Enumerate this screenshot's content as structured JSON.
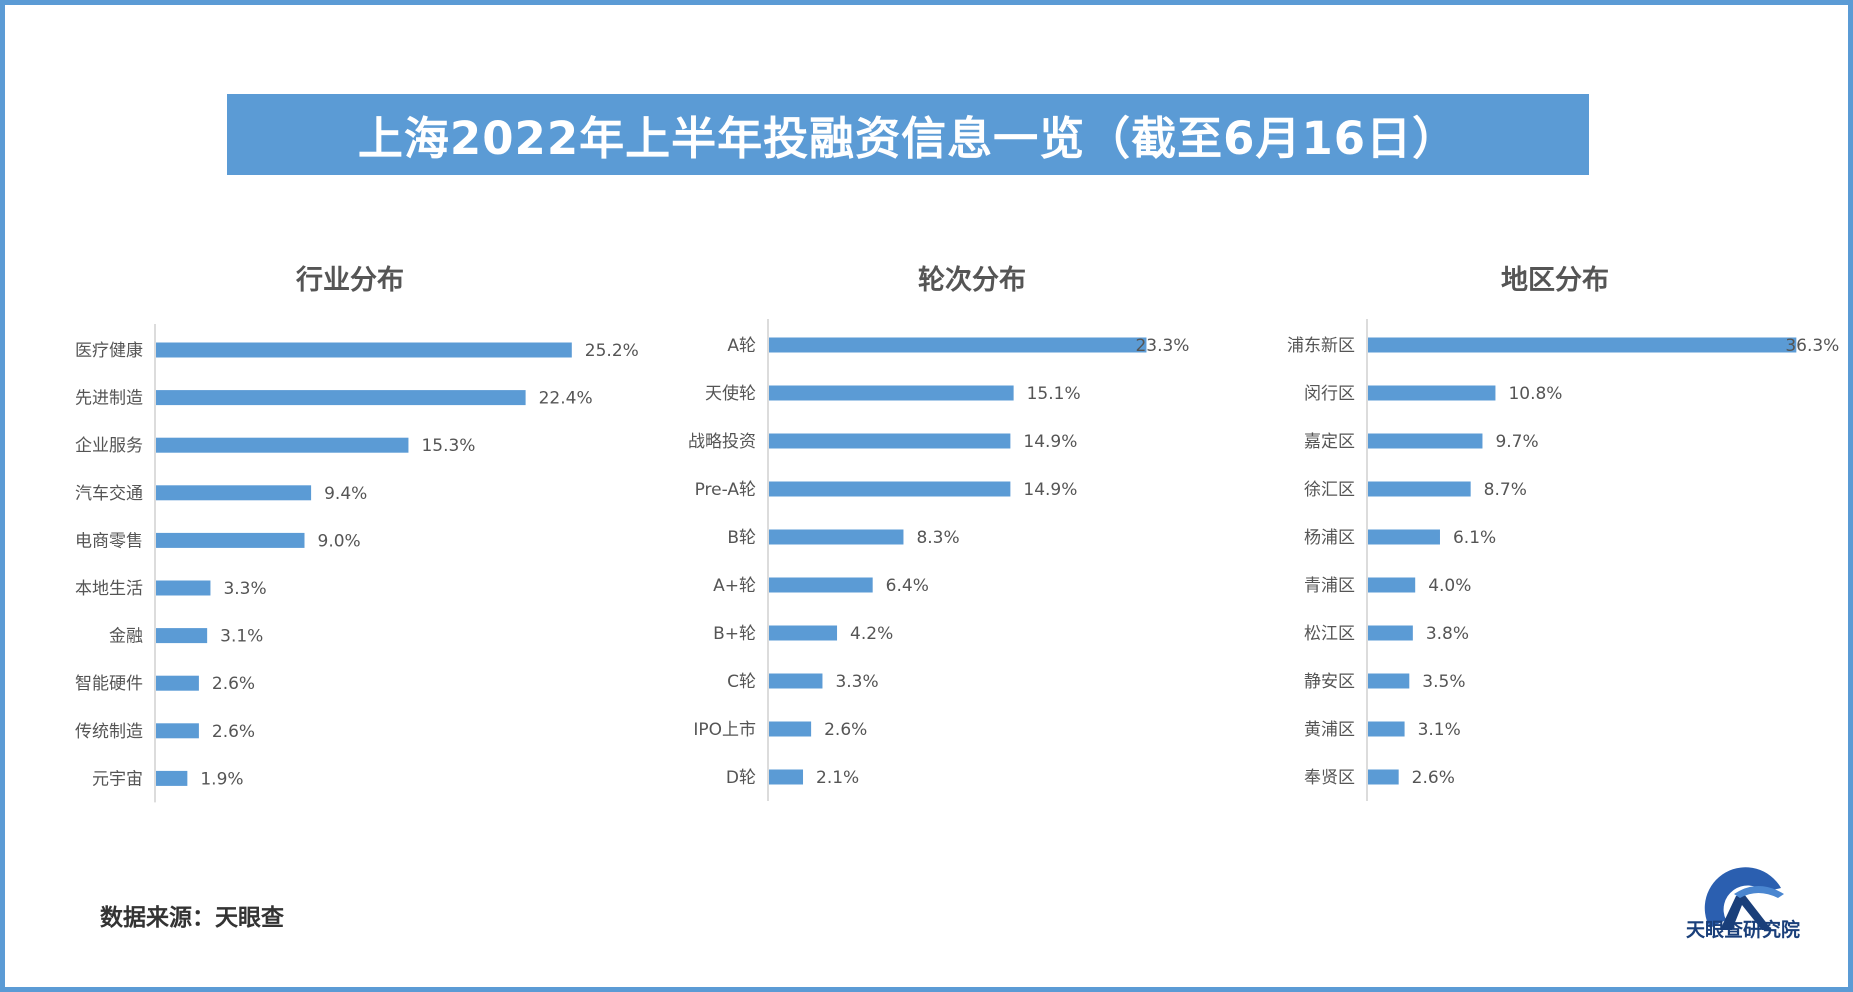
{
  "title": "上海2022年上半年投融资信息一览（截至6月16日）",
  "source_text": "数据来源：天眼查",
  "brand_text": "天眼查研究院",
  "colors": {
    "accent": "#5b9bd5",
    "brand": "#1a3f7a"
  },
  "logo_icon": "tianyancha-logo-icon",
  "chart_data": [
    {
      "type": "bar",
      "orientation": "horizontal",
      "title": "行业分布",
      "categories": [
        "医疗健康",
        "先进制造",
        "企业服务",
        "汽车交通",
        "电商零售",
        "本地生活",
        "金融",
        "智能硬件",
        "传统制造",
        "元宇宙"
      ],
      "values": [
        25.2,
        22.4,
        15.3,
        9.4,
        9.0,
        3.3,
        3.1,
        2.6,
        2.6,
        1.9
      ],
      "labels": [
        "25.2%",
        "22.4%",
        "15.3%",
        "9.4%",
        "9.0%",
        "3.3%",
        "3.1%",
        "2.6%",
        "2.6%",
        "1.9%"
      ],
      "unit": "%",
      "grid": false
    },
    {
      "type": "bar",
      "orientation": "horizontal",
      "title": "轮次分布",
      "categories": [
        "A轮",
        "天使轮",
        "战略投资",
        "Pre-A轮",
        "B轮",
        "A+轮",
        "B+轮",
        "C轮",
        "IPO上市",
        "D轮"
      ],
      "values": [
        23.3,
        15.1,
        14.9,
        14.9,
        8.3,
        6.4,
        4.2,
        3.3,
        2.6,
        2.1
      ],
      "labels": [
        "23.3%",
        "15.1%",
        "14.9%",
        "14.9%",
        "8.3%",
        "6.4%",
        "4.2%",
        "3.3%",
        "2.6%",
        "2.1%"
      ],
      "unit": "%",
      "grid": false
    },
    {
      "type": "bar",
      "orientation": "horizontal",
      "title": "地区分布",
      "categories": [
        "浦东新区",
        "闵行区",
        "嘉定区",
        "徐汇区",
        "杨浦区",
        "青浦区",
        "松江区",
        "静安区",
        "黄浦区",
        "奉贤区"
      ],
      "values": [
        36.3,
        10.8,
        9.7,
        8.7,
        6.1,
        4.0,
        3.8,
        3.5,
        3.1,
        2.6
      ],
      "labels": [
        "36.3%",
        "10.8%",
        "9.7%",
        "8.7%",
        "6.1%",
        "4.0%",
        "3.8%",
        "3.5%",
        "3.1%",
        "2.6%"
      ],
      "unit": "%",
      "grid": false
    }
  ]
}
